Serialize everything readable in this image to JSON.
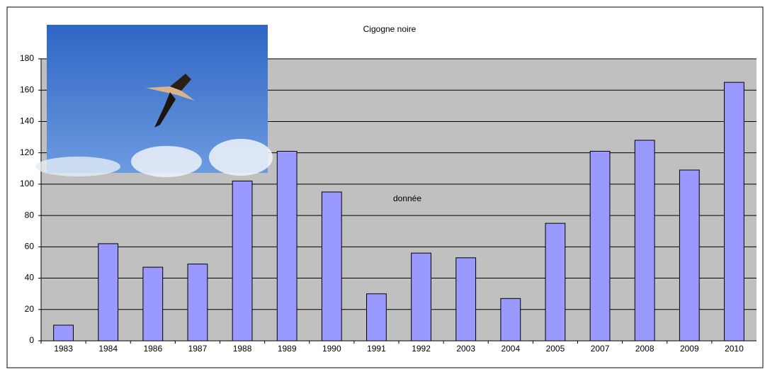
{
  "chart_data": {
    "type": "bar",
    "title": "Cigogne noire",
    "categories": [
      "1983",
      "1984",
      "1986",
      "1987",
      "1988",
      "1989",
      "1990",
      "1991",
      "1992",
      "2003",
      "2004",
      "2005",
      "2007",
      "2008",
      "2009",
      "2010"
    ],
    "series": [
      {
        "name": "donnée",
        "color": "#9999ff",
        "values": [
          10,
          62,
          47,
          49,
          102,
          121,
          95,
          30,
          56,
          53,
          27,
          75,
          121,
          128,
          109,
          165
        ]
      }
    ],
    "ylim": [
      0,
      180
    ],
    "yticks": [
      0,
      20,
      40,
      60,
      80,
      100,
      120,
      140,
      160,
      180
    ],
    "grid": true
  }
}
